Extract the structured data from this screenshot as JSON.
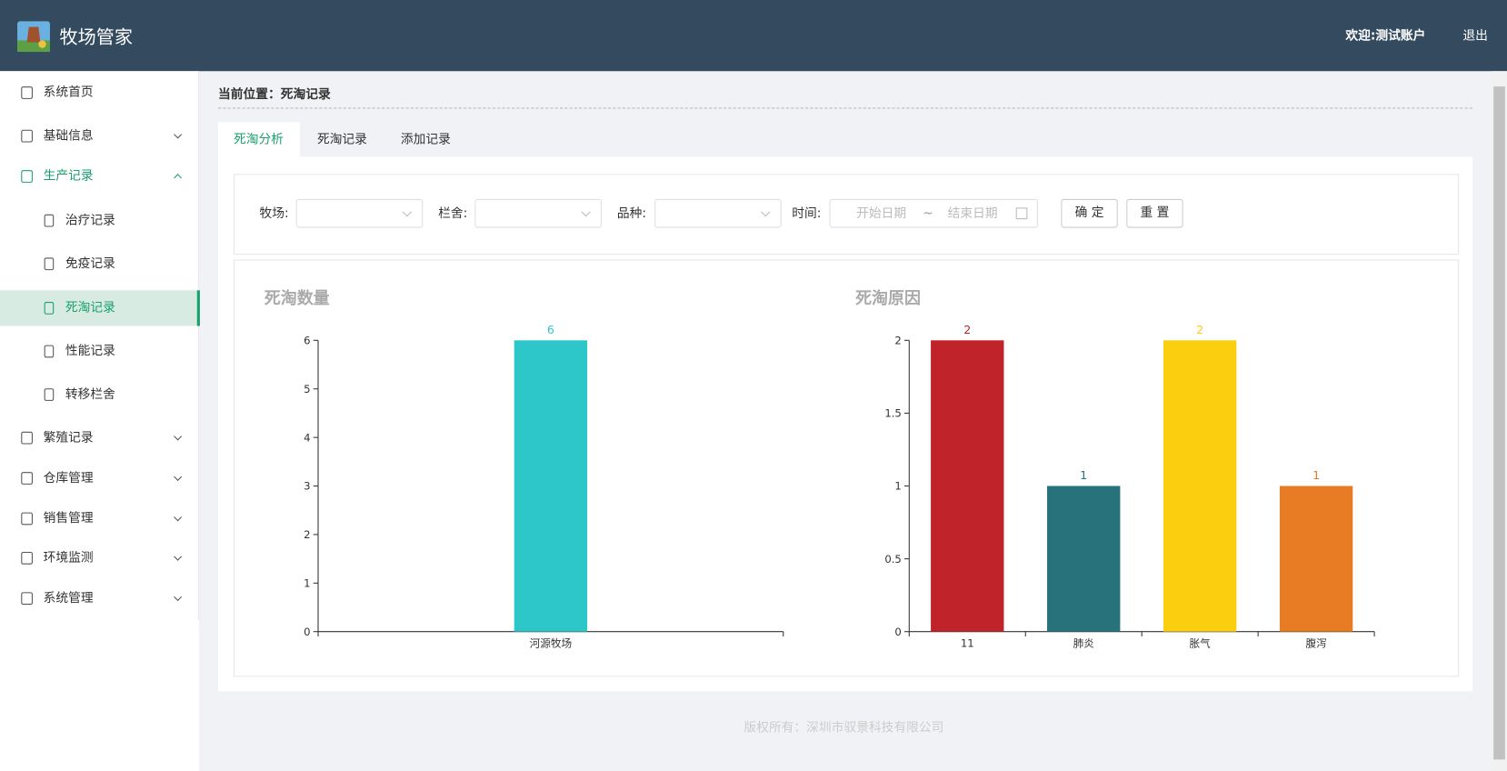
{
  "header": {
    "app_name": "牧场管家",
    "welcome": "欢迎:测试账户",
    "logout": "退出"
  },
  "sidebar": {
    "items": [
      {
        "label": "系统首页"
      },
      {
        "label": "基础信息"
      },
      {
        "label": "生产记录",
        "children": [
          "治疗记录",
          "免疫记录",
          "死淘记录",
          "性能记录",
          "转移栏舍"
        ]
      },
      {
        "label": "繁殖记录"
      },
      {
        "label": "仓库管理"
      },
      {
        "label": "销售管理"
      },
      {
        "label": "环境监测"
      },
      {
        "label": "系统管理"
      }
    ]
  },
  "breadcrumb": "当前位置：死淘记录",
  "tabs": [
    "死淘分析",
    "死淘记录",
    "添加记录"
  ],
  "filters": {
    "farm_label": "牧场:",
    "pen_label": "栏舍:",
    "breed_label": "品种:",
    "time_label": "时间:",
    "start_placeholder": "开始日期",
    "separator": "~",
    "end_placeholder": "结束日期",
    "confirm": "确 定",
    "reset": "重 置"
  },
  "chart_data": [
    {
      "type": "bar",
      "title": "死淘数量",
      "categories": [
        "河源牧场"
      ],
      "values": [
        6
      ],
      "color": "#2ec7c9",
      "ylim": [
        0,
        6
      ],
      "yticks": [
        0,
        1,
        2,
        3,
        4,
        5,
        6
      ]
    },
    {
      "type": "bar",
      "title": "死淘原因",
      "categories": [
        "11",
        "肺炎",
        "胀气",
        "腹泻"
      ],
      "values": [
        2,
        1,
        2,
        1
      ],
      "colors": [
        "#c1232b",
        "#27727b",
        "#fcce10",
        "#e87c25"
      ],
      "ylim": [
        0,
        2
      ],
      "yticks": [
        0,
        0.5,
        1,
        1.5,
        2
      ]
    }
  ],
  "footer": "版权所有：深圳市驭景科技有限公司"
}
